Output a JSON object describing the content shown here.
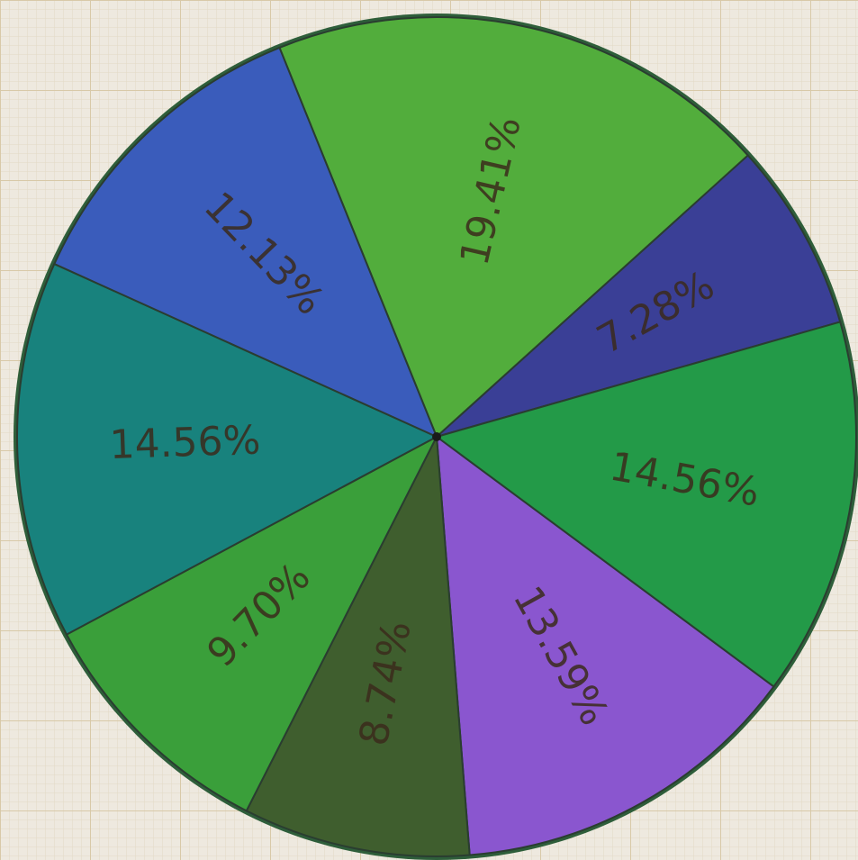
{
  "chart_data": {
    "type": "pie",
    "categories": [
      null,
      null,
      null,
      null,
      null,
      null,
      null,
      null
    ],
    "values": [
      19.41,
      7.28,
      14.56,
      13.59,
      8.74,
      9.7,
      14.56,
      12.13
    ],
    "value_labels": [
      "19.41%",
      "7.28%",
      "14.56%",
      "13.59%",
      "8.74%",
      "9.70%",
      "14.56%",
      "12.13%"
    ],
    "colors": [
      "#52ad3c",
      "#3a3f96",
      "#239a48",
      "#8a56cf",
      "#3f5e2e",
      "#3a9f3a",
      "#18827d",
      "#3a5cbb"
    ],
    "start_angle": -22
  }
}
